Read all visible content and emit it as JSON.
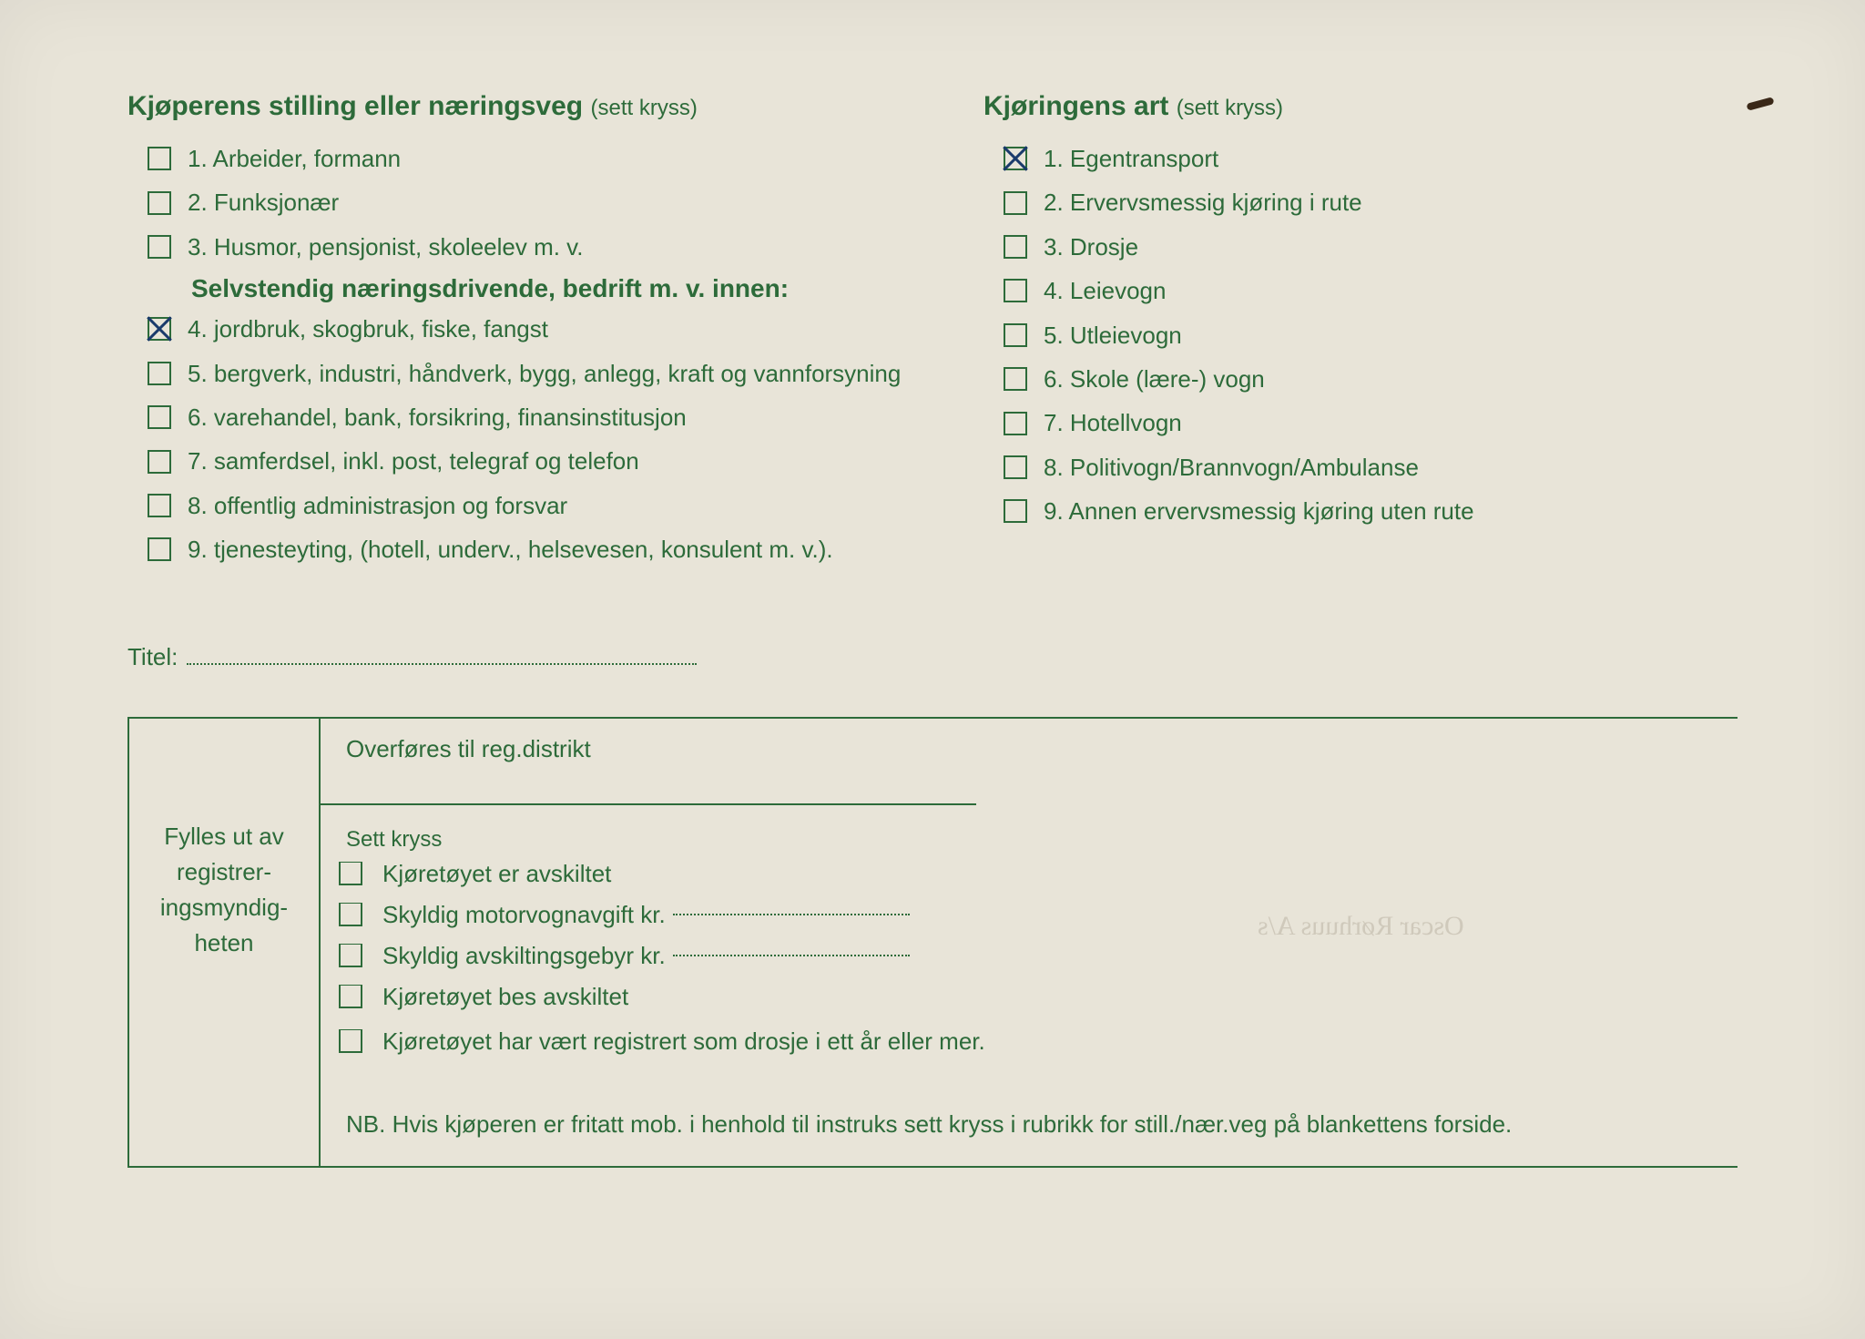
{
  "colors": {
    "text": "#2d6b3a",
    "paper": "#e8e4d8",
    "pen": "#1a3a6b"
  },
  "left": {
    "title": "Kjøperens stilling eller næringsveg",
    "hint": "(sett kryss)",
    "items_a": [
      {
        "n": "1.",
        "label": "Arbeider, formann",
        "checked": false
      },
      {
        "n": "2.",
        "label": "Funksjonær",
        "checked": false
      },
      {
        "n": "3.",
        "label": "Husmor, pensjonist, skoleelev m. v.",
        "checked": false
      }
    ],
    "subtitle": "Selvstendig næringsdrivende, bedrift m. v. innen:",
    "items_b": [
      {
        "n": "4.",
        "label": "jordbruk, skogbruk, fiske, fangst",
        "checked": true
      },
      {
        "n": "5.",
        "label": "bergverk, industri, håndverk, bygg, anlegg, kraft og vannforsyning",
        "checked": false
      },
      {
        "n": "6.",
        "label": "varehandel, bank, forsikring, finansinstitusjon",
        "checked": false
      },
      {
        "n": "7.",
        "label": "samferdsel, inkl. post, telegraf og telefon",
        "checked": false
      },
      {
        "n": "8.",
        "label": "offentlig administrasjon og forsvar",
        "checked": false
      },
      {
        "n": "9.",
        "label": "tjenesteyting, (hotell, underv., helsevesen, konsulent m. v.).",
        "checked": false
      }
    ]
  },
  "right": {
    "title": "Kjøringens art",
    "hint": "(sett kryss)",
    "items": [
      {
        "n": "1.",
        "label": "Egentransport",
        "checked": true
      },
      {
        "n": "2.",
        "label": "Ervervsmessig kjøring i rute",
        "checked": false
      },
      {
        "n": "3.",
        "label": "Drosje",
        "checked": false
      },
      {
        "n": "4.",
        "label": "Leievogn",
        "checked": false
      },
      {
        "n": "5.",
        "label": "Utleievogn",
        "checked": false
      },
      {
        "n": "6.",
        "label": "Skole (lære-) vogn",
        "checked": false
      },
      {
        "n": "7.",
        "label": "Hotellvogn",
        "checked": false
      },
      {
        "n": "8.",
        "label": "Politivogn/Brannvogn/Ambulanse",
        "checked": false
      },
      {
        "n": "9.",
        "label": "Annen ervervsmessig kjøring uten rute",
        "checked": false
      }
    ]
  },
  "titel_label": "Titel:",
  "admin": {
    "side_label": "Fylles ut av registrer-ingsmyndig-heten",
    "top_label": "Overføres til reg.distrikt",
    "sett_label": "Sett kryss",
    "items": [
      {
        "label": "Kjøretøyet er avskiltet",
        "dotted": false
      },
      {
        "label": "Skyldig motorvognavgift kr.",
        "dotted": true
      },
      {
        "label": "Skyldig avskiltingsgebyr kr.",
        "dotted": true
      },
      {
        "label": "Kjøretøyet bes avskiltet",
        "dotted": false
      },
      {
        "label": "Kjøretøyet har vært registrert som drosje i ett år eller mer.",
        "dotted": false
      }
    ],
    "nb": "NB. Hvis kjøperen er fritatt mob. i henhold til instruks sett kryss i rubrikk for still./nær.veg på blankettens forside."
  },
  "bleed": "Oscar Rørhuus A/s"
}
